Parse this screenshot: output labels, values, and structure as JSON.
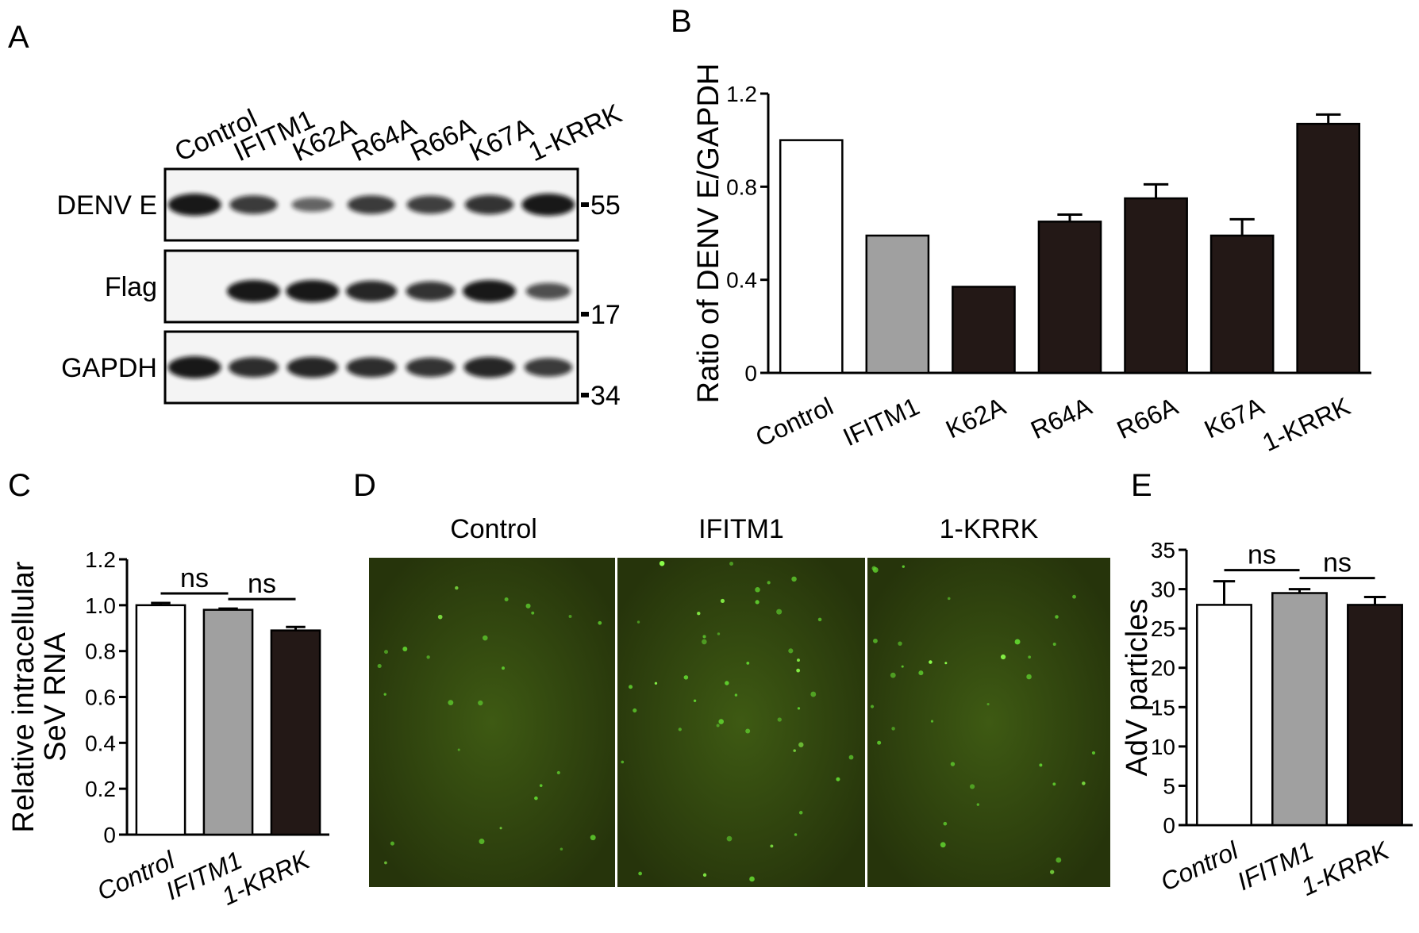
{
  "panels": {
    "a": {
      "letter": "A"
    },
    "b": {
      "letter": "B"
    },
    "c": {
      "letter": "C"
    },
    "d": {
      "letter": "D"
    },
    "e": {
      "letter": "E"
    }
  },
  "blot": {
    "lanes": [
      "Control",
      "IFITM1",
      "K62A",
      "R64A",
      "R66A",
      "K67A",
      "1-KRRK"
    ],
    "rows": [
      {
        "label": "DENV E",
        "marker": "55",
        "intensity": [
          1.0,
          0.75,
          0.45,
          0.75,
          0.72,
          0.8,
          1.0
        ]
      },
      {
        "label": "Flag",
        "marker": "17",
        "intensity": [
          0,
          1.0,
          1.0,
          0.9,
          0.8,
          1.0,
          0.6
        ]
      },
      {
        "label": "GAPDH",
        "marker": "34",
        "intensity": [
          1.0,
          0.85,
          0.9,
          0.85,
          0.8,
          0.9,
          0.75
        ]
      }
    ]
  },
  "micrographs": {
    "titles": [
      "Control",
      "IFITM1",
      "1-KRRK"
    ]
  },
  "chart_data": [
    {
      "id": "B",
      "type": "bar",
      "categories": [
        "Control",
        "IFITM1",
        "K62A",
        "R64A",
        "R66A",
        "K67A",
        "1-KRRK"
      ],
      "values": [
        1.0,
        0.59,
        0.37,
        0.65,
        0.75,
        0.59,
        1.07
      ],
      "errors": [
        0,
        0,
        0,
        0.03,
        0.06,
        0.07,
        0.04
      ],
      "colors": [
        "#ffffff",
        "#a0a0a0",
        "#231816",
        "#231816",
        "#231816",
        "#231816",
        "#231816"
      ],
      "ylabel": "Ratio of DENV E/GAPDH",
      "ylim": [
        0,
        1.2
      ],
      "yticks": [
        "0",
        "0.4",
        "0.8",
        "1.2"
      ]
    },
    {
      "id": "C",
      "type": "bar",
      "categories": [
        "Control",
        "IFITM1",
        "1-KRRK"
      ],
      "values": [
        1.0,
        0.98,
        0.89
      ],
      "errors": [
        0.01,
        0.005,
        0.015
      ],
      "colors": [
        "#ffffff",
        "#a0a0a0",
        "#231816"
      ],
      "ylabel": [
        "Relative intracellular",
        "SeV RNA"
      ],
      "ylim": [
        0,
        1.2
      ],
      "yticks": [
        "0",
        "0.2",
        "0.4",
        "0.6",
        "0.8",
        "1.0",
        "1.2"
      ],
      "annotations": [
        "ns",
        "ns"
      ]
    },
    {
      "id": "E",
      "type": "bar",
      "categories": [
        "Control",
        "IFITM1",
        "1-KRRK"
      ],
      "values": [
        28,
        29.5,
        28
      ],
      "errors": [
        3,
        0.5,
        1
      ],
      "colors": [
        "#ffffff",
        "#a0a0a0",
        "#231816"
      ],
      "ylabel": "AdV particles",
      "ylim": [
        0,
        35
      ],
      "yticks": [
        "0",
        "5",
        "10",
        "15",
        "20",
        "25",
        "30",
        "35"
      ],
      "annotations": [
        "ns",
        "ns"
      ]
    }
  ]
}
